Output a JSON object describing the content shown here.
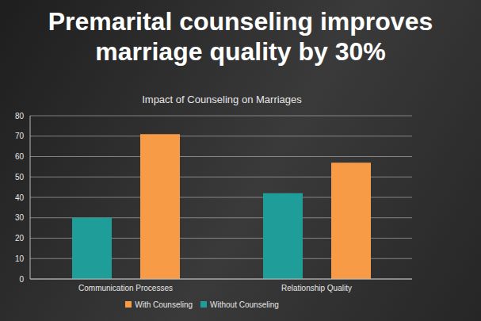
{
  "chart_data": {
    "type": "bar",
    "title": "Premarital counseling improves marriage quality by 30%",
    "subtitle": "Impact of Counseling on Marriages",
    "categories": [
      "Communication Processes",
      "Relationship Quality"
    ],
    "series": [
      {
        "name": "Without Counseling",
        "color": "#1f9e99",
        "values": [
          30,
          42
        ]
      },
      {
        "name": "With Counseling",
        "color": "#f79b46",
        "values": [
          71,
          57
        ]
      }
    ],
    "ylim": [
      0,
      80
    ],
    "yticks": [
      0,
      10,
      20,
      30,
      40,
      50,
      60,
      70,
      80
    ],
    "grid": true,
    "legend": "bottom"
  }
}
